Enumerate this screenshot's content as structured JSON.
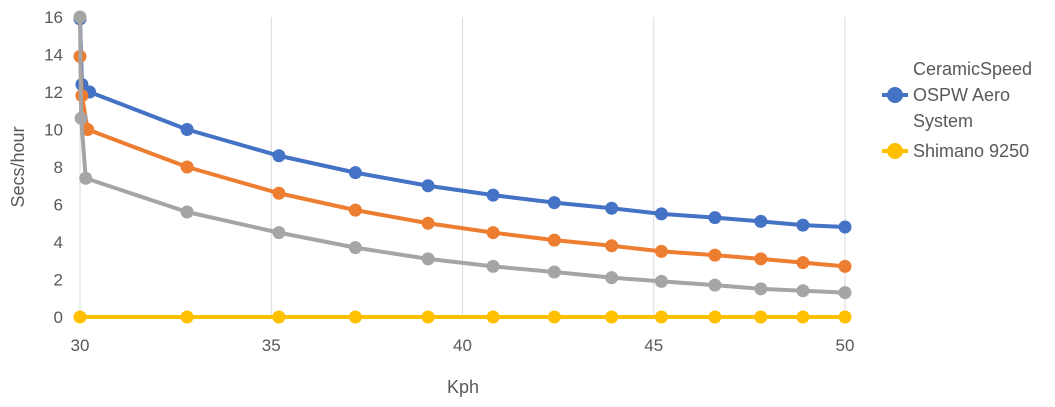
{
  "chart_data": {
    "type": "line",
    "xlabel": "Kph",
    "ylabel": "Secs/hour",
    "xlim": [
      30,
      50
    ],
    "ylim": [
      0,
      16
    ],
    "x_ticks": [
      30,
      35,
      40,
      45,
      50
    ],
    "y_ticks": [
      0,
      2,
      4,
      6,
      8,
      10,
      12,
      14,
      16
    ],
    "grid": "vertical",
    "legend_position": "right",
    "series": [
      {
        "name": "CeramicSpeed OSPW Aero System",
        "color": "#4472C4",
        "x": [
          30,
          30.05,
          30.25,
          32.8,
          35.2,
          37.2,
          39.1,
          40.8,
          42.4,
          43.9,
          45.2,
          46.6,
          47.8,
          48.9,
          50
        ],
        "values": [
          15.9,
          12.4,
          12.0,
          10.0,
          8.6,
          7.7,
          7.0,
          6.5,
          6.1,
          5.8,
          5.5,
          5.3,
          5.1,
          4.9,
          4.8
        ]
      },
      {
        "name": "",
        "color": "#ED7D31",
        "x": [
          30,
          30.05,
          30.2,
          32.8,
          35.2,
          37.2,
          39.1,
          40.8,
          42.4,
          43.9,
          45.2,
          46.6,
          47.8,
          48.9,
          50
        ],
        "values": [
          13.9,
          11.8,
          10.0,
          8.0,
          6.6,
          5.7,
          5.0,
          4.5,
          4.1,
          3.8,
          3.5,
          3.3,
          3.1,
          2.9,
          2.7
        ]
      },
      {
        "name": "",
        "color": "#A5A5A5",
        "x": [
          30,
          30.03,
          30.15,
          32.8,
          35.2,
          37.2,
          39.1,
          40.8,
          42.4,
          43.9,
          45.2,
          46.6,
          47.8,
          48.9,
          50
        ],
        "values": [
          16.0,
          10.6,
          7.4,
          5.6,
          4.5,
          3.7,
          3.1,
          2.7,
          2.4,
          2.1,
          1.9,
          1.7,
          1.5,
          1.4,
          1.3
        ]
      },
      {
        "name": "Shimano 9250",
        "color": "#FFC000",
        "x": [
          30,
          32.8,
          35.2,
          37.2,
          39.1,
          40.8,
          42.4,
          43.9,
          45.2,
          46.6,
          47.8,
          48.9,
          50
        ],
        "values": [
          0,
          0,
          0,
          0,
          0,
          0,
          0,
          0,
          0,
          0,
          0,
          0,
          0
        ]
      }
    ],
    "legend": [
      {
        "lines": [
          "CeramicSpeed",
          "OSPW Aero",
          "System"
        ],
        "color": "#4472C4"
      },
      {
        "lines": [
          "Shimano 9250"
        ],
        "color": "#FFC000"
      }
    ]
  }
}
